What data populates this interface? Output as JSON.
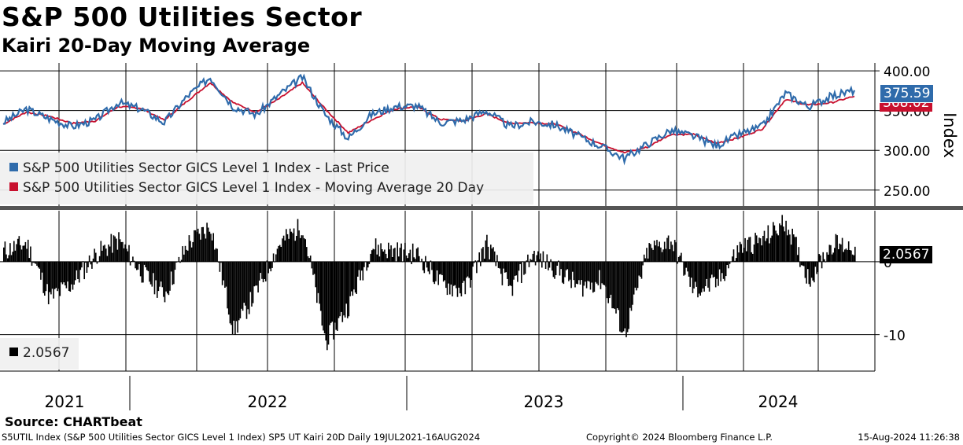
{
  "header": {
    "title": "S&P 500 Utilities Sector",
    "subtitle": "Kairi 20-Day Moving Average"
  },
  "colors": {
    "price": "#2f6bab",
    "ma": "#c8102e",
    "kairi": "#000000"
  },
  "footer": {
    "source": "Source: CHARTbeat",
    "left": "S5UTIL Index (S&P 500 Utilities Sector GICS Level 1 Index) SP5 UT Kairi 20D  Daily 19JUL2021-16AUG2024",
    "center": "Copyright© 2024 Bloomberg Finance L.P.",
    "right": "15-Aug-2024 11:26:38"
  },
  "chart_data": [
    {
      "type": "line",
      "title": "S&P 500 Utilities Sector",
      "ylabel": "Index",
      "ylim": [
        230,
        410
      ],
      "yticks": [
        "400.00",
        "350.00",
        "300.00",
        "250.00"
      ],
      "x_years": [
        "2021",
        "2022",
        "2023",
        "2024"
      ],
      "legend": [
        "S&P 500 Utilities Sector GICS Level 1 Index - Last Price",
        "S&P 500 Utilities Sector GICS Level 1 Index - Moving Average 20 Day"
      ],
      "last_price_label": "375.59",
      "ma_label": "368.02",
      "series": [
        {
          "name": "Last Price",
          "x": [
            "2021-07",
            "2021-08",
            "2021-09",
            "2021-10",
            "2021-11",
            "2021-12",
            "2022-01",
            "2022-02",
            "2022-03",
            "2022-04",
            "2022-05",
            "2022-06",
            "2022-07",
            "2022-08",
            "2022-09",
            "2022-10",
            "2022-11",
            "2022-12",
            "2023-01",
            "2023-02",
            "2023-03",
            "2023-04",
            "2023-05",
            "2023-06",
            "2023-07",
            "2023-08",
            "2023-09",
            "2023-10",
            "2023-11",
            "2023-12",
            "2024-01",
            "2024-02",
            "2024-03",
            "2024-04",
            "2024-05",
            "2024-06",
            "2024-07",
            "2024-08"
          ],
          "values": [
            335,
            352,
            340,
            330,
            338,
            360,
            352,
            335,
            368,
            392,
            355,
            345,
            370,
            392,
            345,
            315,
            345,
            355,
            356,
            335,
            338,
            350,
            330,
            336,
            332,
            318,
            305,
            290,
            308,
            325,
            318,
            306,
            320,
            330,
            372,
            355,
            368,
            375.59
          ]
        },
        {
          "name": "Moving Average 20 Day",
          "x": [
            "2021-07",
            "2021-08",
            "2021-09",
            "2021-10",
            "2021-11",
            "2021-12",
            "2022-01",
            "2022-02",
            "2022-03",
            "2022-04",
            "2022-05",
            "2022-06",
            "2022-07",
            "2022-08",
            "2022-09",
            "2022-10",
            "2022-11",
            "2022-12",
            "2023-01",
            "2023-02",
            "2023-03",
            "2023-04",
            "2023-05",
            "2023-06",
            "2023-07",
            "2023-08",
            "2023-09",
            "2023-10",
            "2023-11",
            "2023-12",
            "2024-01",
            "2024-02",
            "2024-03",
            "2024-04",
            "2024-05",
            "2024-06",
            "2024-07",
            "2024-08"
          ],
          "values": [
            333,
            348,
            343,
            334,
            337,
            355,
            353,
            338,
            362,
            385,
            360,
            348,
            365,
            385,
            352,
            322,
            338,
            352,
            355,
            339,
            337,
            346,
            334,
            335,
            333,
            321,
            308,
            297,
            304,
            320,
            320,
            309,
            316,
            327,
            364,
            357,
            360,
            368.02
          ]
        }
      ]
    },
    {
      "type": "bar",
      "title": "SP5 UT Kairi 20D",
      "ylim": [
        -15,
        7
      ],
      "yticks": [
        "0",
        "-10"
      ],
      "legend": [
        "2.0567"
      ],
      "last_value_label": "2.0567",
      "x": [
        "2021-07",
        "2021-08",
        "2021-09",
        "2021-10",
        "2021-11",
        "2021-12",
        "2022-01",
        "2022-02",
        "2022-03",
        "2022-04",
        "2022-05",
        "2022-06",
        "2022-07",
        "2022-08",
        "2022-09",
        "2022-10",
        "2022-11",
        "2022-12",
        "2023-01",
        "2023-02",
        "2023-03",
        "2023-04",
        "2023-05",
        "2023-06",
        "2023-07",
        "2023-08",
        "2023-09",
        "2023-10",
        "2023-11",
        "2023-12",
        "2024-01",
        "2024-02",
        "2024-03",
        "2024-04",
        "2024-05",
        "2024-06",
        "2024-07",
        "2024-08"
      ],
      "values": [
        1.5,
        2.5,
        -5,
        -3,
        1,
        3,
        -1.5,
        -4.5,
        2.5,
        5,
        -9.5,
        -4,
        2.5,
        5,
        -11,
        -6,
        2,
        1.5,
        1,
        -3,
        -4,
        2.5,
        -4,
        1,
        -1,
        -3.5,
        -2.5,
        -10,
        1.5,
        3,
        -4,
        -3,
        2,
        3,
        5.5,
        -2.5,
        2.5,
        2.0567
      ]
    }
  ]
}
